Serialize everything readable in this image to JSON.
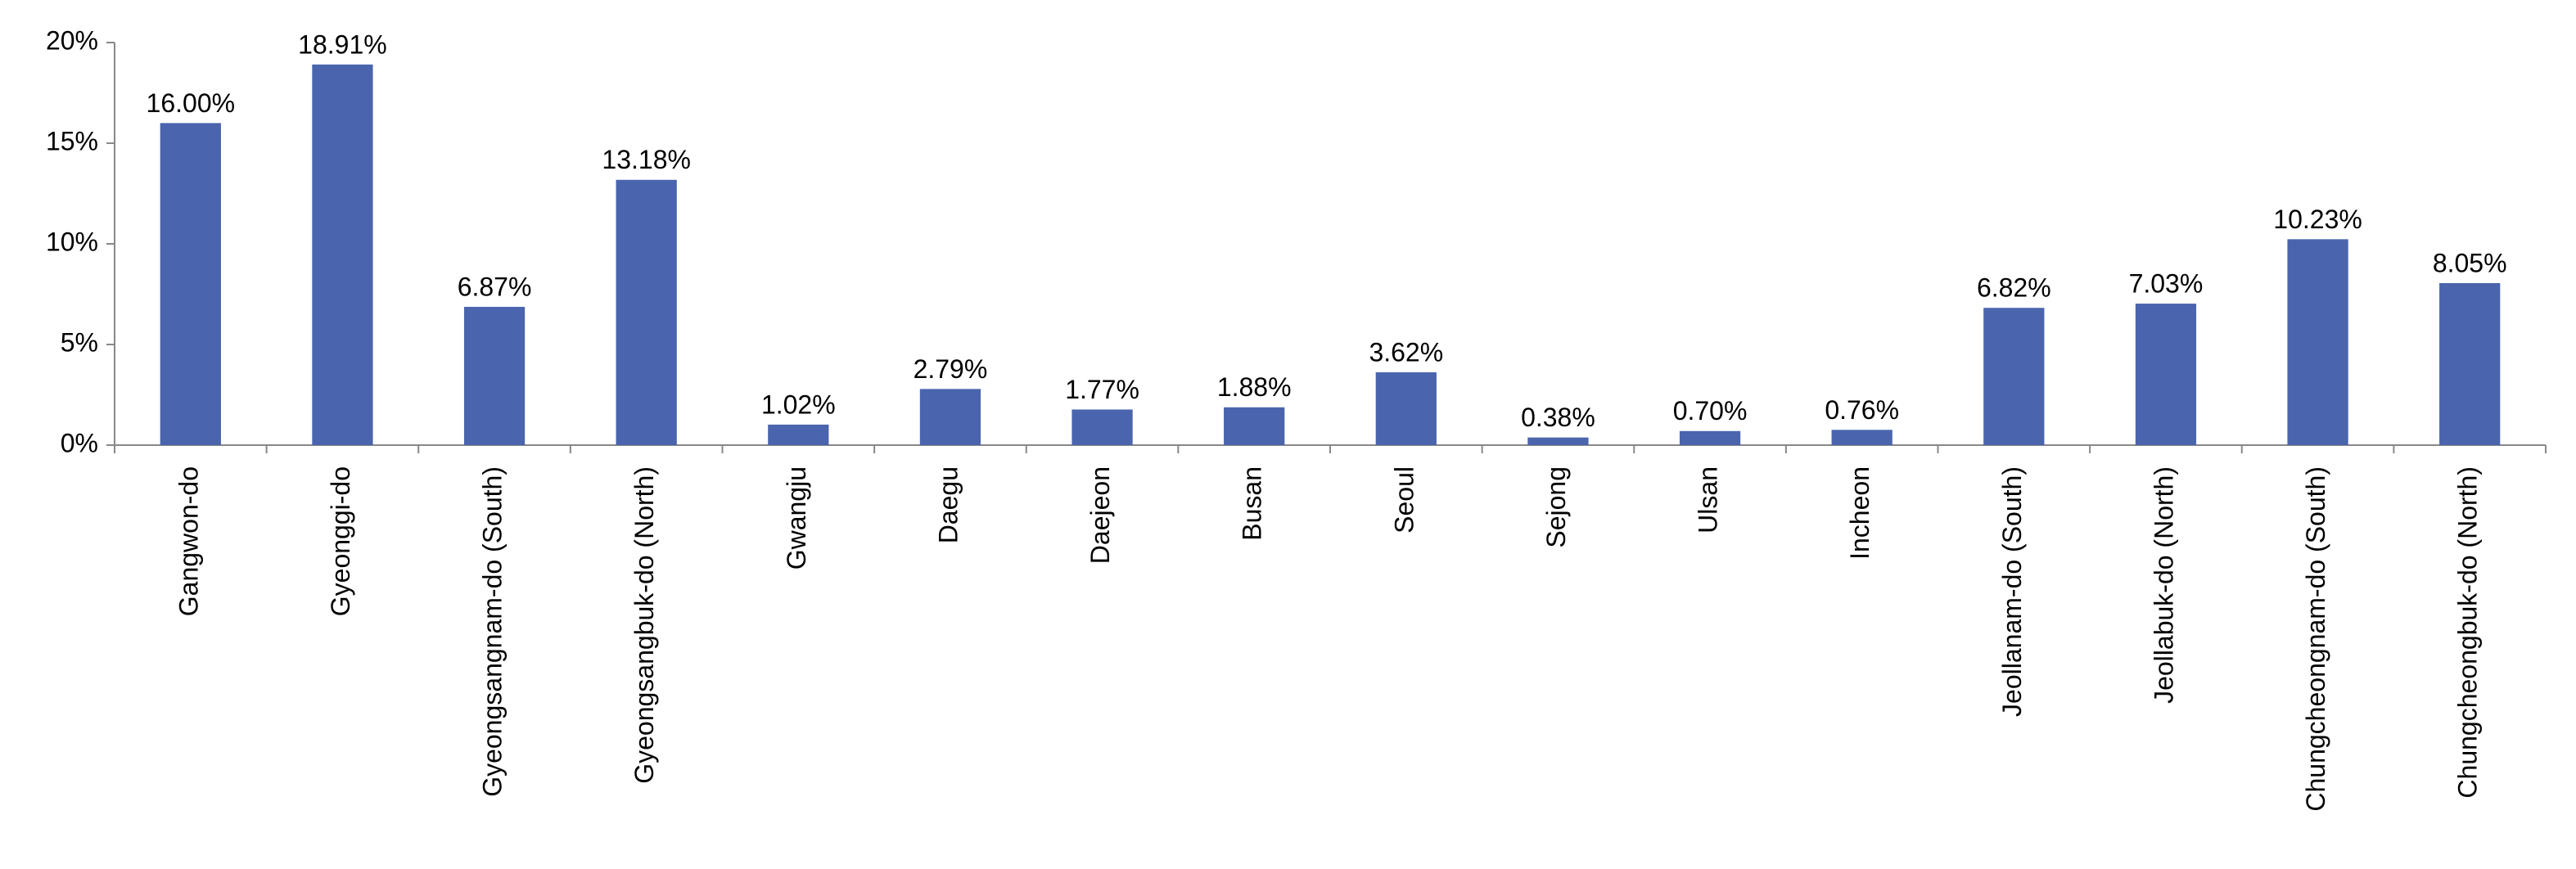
{
  "chart_data": {
    "type": "bar",
    "categories": [
      "Gangwon-do",
      "Gyeonggi-do",
      "Gyeongsangnam-do (South)",
      "Gyeongsangbuk-do (North)",
      "Gwangju",
      "Daegu",
      "Daejeon",
      "Busan",
      "Seoul",
      "Sejong",
      "Ulsan",
      "Incheon",
      "Jeollanam-do (South)",
      "Jeollabuk-do (North)",
      "Chungcheongnam-do (South)",
      "Chungcheongbuk-do (North)"
    ],
    "values": [
      16.0,
      18.91,
      6.87,
      13.18,
      1.02,
      2.79,
      1.77,
      1.88,
      3.62,
      0.38,
      0.7,
      0.76,
      6.82,
      7.03,
      10.23,
      8.05
    ],
    "value_labels": [
      "16.00%",
      "18.91%",
      "6.87%",
      "13.18%",
      "1.02%",
      "2.79%",
      "1.77%",
      "1.88%",
      "3.62%",
      "0.38%",
      "0.70%",
      "0.76%",
      "6.82%",
      "7.03%",
      "10.23%",
      "8.05%"
    ],
    "color": "#4a65ad",
    "ylim": [
      0,
      20
    ],
    "yticks": [
      {
        "value": 0,
        "label": "0%"
      },
      {
        "value": 5,
        "label": "5%"
      },
      {
        "value": 10,
        "label": "10%"
      },
      {
        "value": 15,
        "label": "15%"
      },
      {
        "value": 20,
        "label": "20%"
      }
    ],
    "grid": false
  }
}
